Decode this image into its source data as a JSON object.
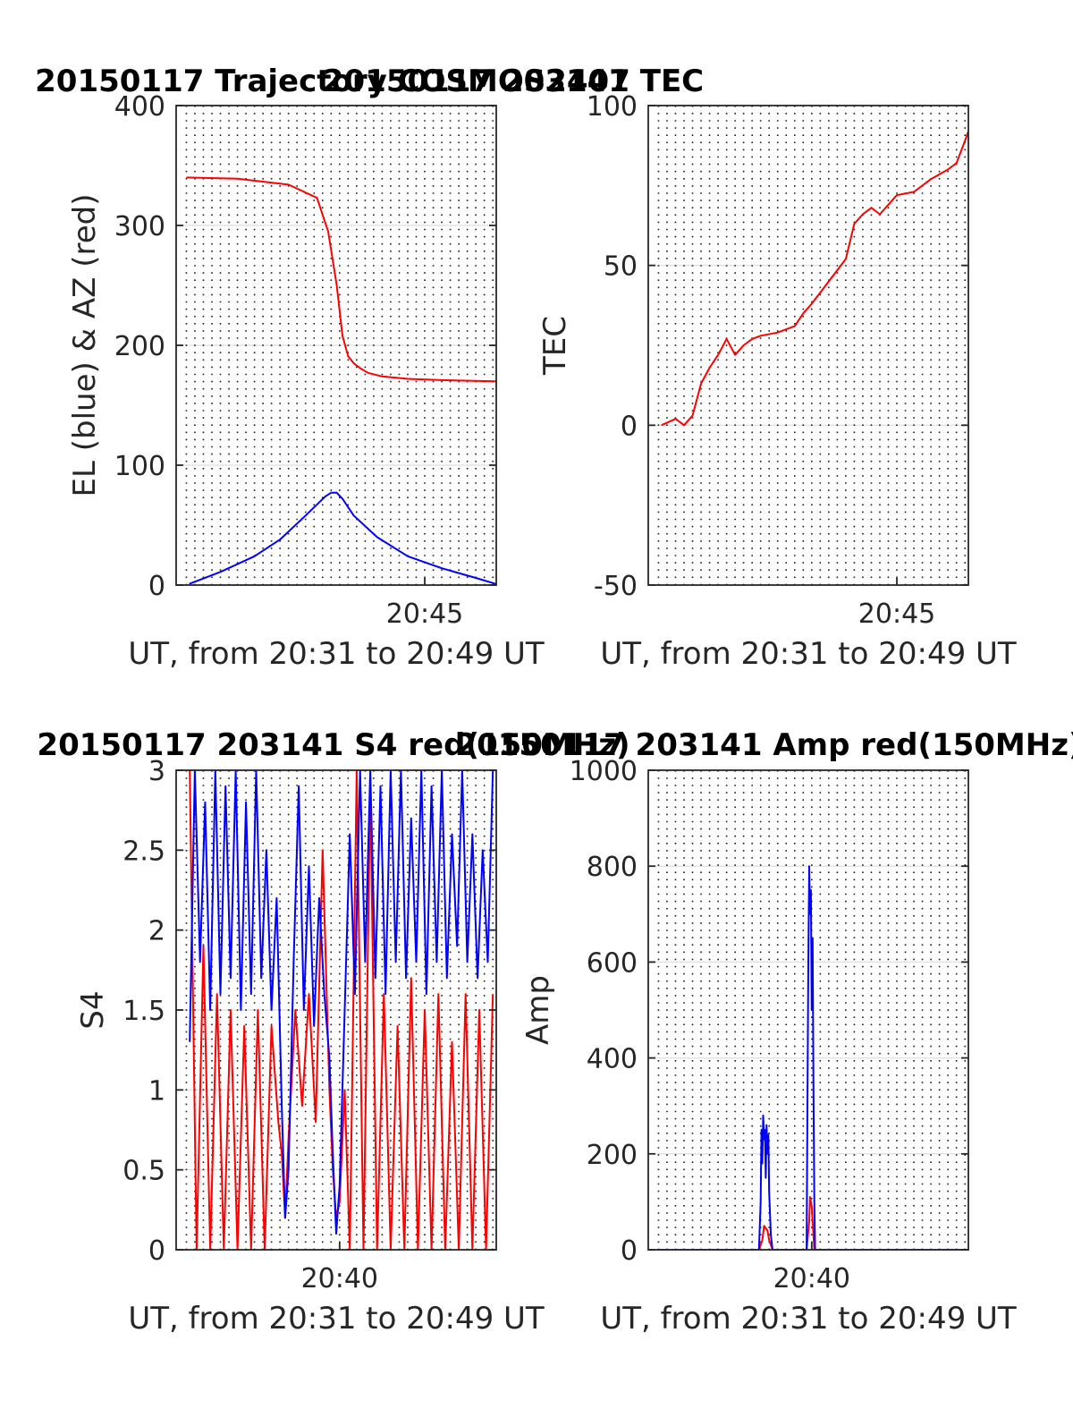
{
  "chart_data": [
    {
      "type": "line",
      "title": "20150117 Trajectory COSMOS2407",
      "xlabel": "UT, from 20:31 to 20:49 UT",
      "ylabel": "EL (blue) & AZ (red)",
      "x_unit": "minutes after 20:30 UT",
      "xlim": [
        0.4,
        19.2
      ],
      "ylim": [
        0,
        400
      ],
      "yticks": [
        0,
        100,
        200,
        300,
        400
      ],
      "xtick_labels": [
        {
          "x": 15,
          "label": "20:45"
        }
      ],
      "grid": "dotted vertical every 30 s, light horizontal at y ticks",
      "series": [
        {
          "color": "#0000ff",
          "x": [
            1.17,
            3,
            5,
            6.5,
            8,
            9.17,
            9.5,
            9.83,
            10.17,
            10.83,
            12.2,
            14,
            16,
            18,
            19.17
          ],
          "y": [
            1,
            11,
            24,
            38,
            58,
            74,
            77,
            77,
            72,
            58,
            40,
            24,
            14,
            6,
            1
          ]
        },
        {
          "color": "#ff0000",
          "x": [
            1,
            4,
            7,
            8.67,
            9.33,
            9.83,
            10.17,
            10.5,
            10.83,
            11.2,
            11.67,
            12.5,
            14,
            16,
            19.17
          ],
          "y": [
            340,
            339,
            334,
            323,
            295,
            250,
            208,
            191,
            185,
            181,
            177,
            174,
            172,
            171,
            170
          ]
        }
      ]
    },
    {
      "type": "line",
      "title": "20150117 203141 TEC",
      "xlabel": "UT, from 20:31 to 20:49 UT",
      "ylabel": "TEC",
      "x_unit": "minutes after 20:30 UT",
      "xlim": [
        0.4,
        19.2
      ],
      "ylim": [
        -50,
        100
      ],
      "yticks": [
        -50,
        0,
        50,
        100
      ],
      "xtick_labels": [
        {
          "x": 15,
          "label": "20:45"
        }
      ],
      "grid": "dotted vertical every 30 s, light horizontal at y ticks",
      "series": [
        {
          "color": "#ff0000",
          "x": [
            1.17,
            2,
            2.5,
            3,
            3.5,
            4,
            4.5,
            5,
            5.5,
            6,
            6.5,
            7,
            8,
            9,
            9.5,
            10,
            11,
            12,
            12.5,
            13,
            13.5,
            14,
            15,
            16,
            17,
            18,
            18.5,
            19,
            19.2
          ],
          "y": [
            0,
            2,
            0,
            3,
            13,
            18,
            22,
            27,
            22,
            25,
            27,
            28,
            29,
            31,
            35,
            38,
            45,
            52,
            63,
            66,
            68,
            66,
            72,
            73,
            77,
            80,
            82,
            89,
            92
          ]
        }
      ]
    },
    {
      "type": "line",
      "title": "20150117 203141 S4 red(150MHz)",
      "xlabel": "UT, from 20:31 to 20:49 UT",
      "ylabel": "S4",
      "x_unit": "minutes after 20:30 UT",
      "xlim": [
        0.4,
        19.2
      ],
      "ylim": [
        0,
        3
      ],
      "yticks": [
        0,
        0.5,
        1,
        1.5,
        2,
        2.5,
        3
      ],
      "xtick_labels": [
        {
          "x": 10,
          "label": "20:40"
        }
      ],
      "grid": "dotted vertical every 30 s, light horizontal at y ticks",
      "series": [
        {
          "color": "#ff0000",
          "x": [
            1.2,
            1.6,
            2,
            2.4,
            2.8,
            3.2,
            3.6,
            4,
            4.4,
            4.8,
            5.2,
            5.6,
            6,
            6.4,
            6.6,
            6.8,
            7,
            7.4,
            7.8,
            8.2,
            8.6,
            9,
            9.4,
            9.6,
            9.8,
            10,
            10.3,
            10.6,
            11,
            11.4,
            11.8,
            12.2,
            12.6,
            13,
            13.4,
            13.8,
            14.2,
            14.6,
            15,
            15.4,
            15.8,
            16.2,
            16.6,
            17,
            17.4,
            17.8,
            18.2,
            18.6,
            19
          ],
          "y": [
            3,
            0,
            1.9,
            0,
            1.6,
            0,
            1.5,
            0,
            1.4,
            0,
            1.5,
            0,
            1.4,
            0.8,
            0.6,
            0.2,
            0.7,
            1.5,
            0.9,
            1.6,
            0.8,
            2.5,
            1,
            0.5,
            0.2,
            0.3,
            1,
            0,
            3,
            0,
            2.9,
            0,
            1.6,
            0,
            1.4,
            0,
            1.7,
            0,
            1.5,
            0,
            1.6,
            0,
            1.3,
            0,
            1.6,
            0,
            1.5,
            0,
            1.6
          ]
        },
        {
          "color": "#0000ff",
          "x": [
            1.2,
            1.5,
            1.8,
            2.1,
            2.4,
            2.7,
            3,
            3.3,
            3.6,
            3.9,
            4.2,
            4.5,
            4.8,
            5.1,
            5.4,
            5.7,
            6,
            6.3,
            6.6,
            6.8,
            7,
            7.3,
            7.6,
            7.9,
            8.2,
            8.5,
            8.8,
            9.1,
            9.4,
            9.6,
            9.8,
            10,
            10.3,
            10.6,
            10.9,
            11.2,
            11.5,
            11.8,
            12.1,
            12.4,
            12.7,
            13,
            13.3,
            13.6,
            13.9,
            14.2,
            14.5,
            14.8,
            15.1,
            15.4,
            15.7,
            16,
            16.3,
            16.6,
            16.9,
            17.2,
            17.5,
            17.8,
            18.1,
            18.4,
            18.7,
            19
          ],
          "y": [
            1.3,
            3,
            1.8,
            2.8,
            1.5,
            3,
            1.6,
            2.9,
            1.7,
            3,
            1.5,
            2.8,
            1.6,
            3,
            1.7,
            2.5,
            1.5,
            2.2,
            0.9,
            0.2,
            0.5,
            1.8,
            2.9,
            1.5,
            2.4,
            1.4,
            2.2,
            1.6,
            1.2,
            0.6,
            0.1,
            0.4,
            1.5,
            2.6,
            1.6,
            3,
            1.8,
            3,
            1.7,
            2.9,
            1.6,
            3,
            1.8,
            3,
            1.7,
            2.7,
            1.8,
            3,
            1.6,
            2.9,
            1.8,
            3,
            1.7,
            2.6,
            1.9,
            3,
            1.8,
            2.6,
            1.7,
            2.5,
            1.8,
            3
          ]
        }
      ]
    },
    {
      "type": "line",
      "title": "20150117 203141 Amp red(150MHz)",
      "xlabel": "UT, from 20:31 to 20:49 UT",
      "ylabel": "Amp",
      "x_unit": "minutes after 20:30 UT",
      "xlim": [
        0.4,
        19.2
      ],
      "ylim": [
        0,
        1000
      ],
      "yticks": [
        0,
        200,
        400,
        600,
        800,
        1000
      ],
      "xtick_labels": [
        {
          "x": 10,
          "label": "20:40"
        }
      ],
      "grid": "dotted vertical every 30 s, light horizontal at y ticks",
      "series": [
        {
          "color": "#ff0000",
          "x": [
            1,
            6.9,
            7.1,
            7.2,
            7.4,
            7.5,
            7.7,
            9.7,
            9.85,
            9.9,
            9.95,
            10.0,
            10.15,
            19.2
          ],
          "y": [
            0,
            0,
            20,
            50,
            40,
            20,
            0,
            0,
            60,
            110,
            100,
            90,
            0,
            0
          ]
        },
        {
          "color": "#0000ff",
          "x": [
            1,
            6.9,
            7.0,
            7.05,
            7.1,
            7.15,
            7.2,
            7.25,
            7.3,
            7.35,
            7.4,
            7.45,
            7.5,
            7.6,
            7.7,
            9.7,
            9.75,
            9.8,
            9.85,
            9.9,
            9.95,
            10.0,
            10.05,
            10.1,
            10.15,
            10.2,
            19.2
          ],
          "y": [
            0,
            0,
            100,
            250,
            180,
            280,
            230,
            250,
            150,
            260,
            200,
            240,
            120,
            30,
            0,
            0,
            300,
            600,
            800,
            700,
            750,
            500,
            650,
            350,
            100,
            0,
            0
          ]
        }
      ]
    }
  ]
}
